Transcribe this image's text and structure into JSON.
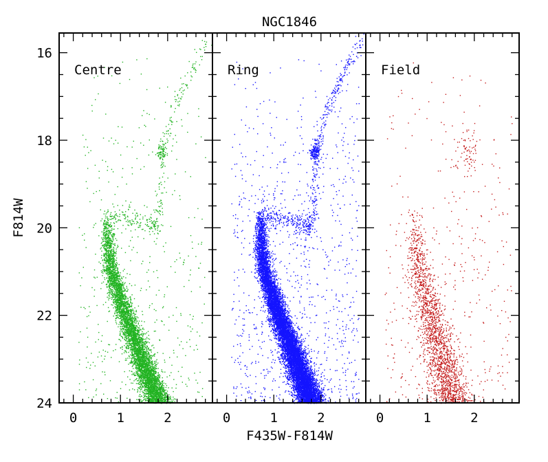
{
  "chart_data": {
    "type": "scatter",
    "title": "NGC1846",
    "xlabel": "F435W-F814W",
    "ylabel": "F814W",
    "xlim": [
      -0.3,
      2.95
    ],
    "ylim": [
      24,
      15.55
    ],
    "y_inverted": true,
    "grid": false,
    "x_ticks": [
      0,
      1,
      2
    ],
    "x_tick_labels": [
      "0",
      "1",
      "2"
    ],
    "y_ticks": [
      16,
      18,
      20,
      22,
      24
    ],
    "y_tick_labels": [
      "16",
      "18",
      "20",
      "22",
      "24"
    ],
    "panels": [
      {
        "label": "Centre",
        "color": "#22b322",
        "point_count_approx": 6500,
        "features": {
          "main_sequence_ridge": [
            [
              0.72,
              19.6
            ],
            [
              0.72,
              20.0
            ],
            [
              0.74,
              20.5
            ],
            [
              0.8,
              21.0
            ],
            [
              0.95,
              21.5
            ],
            [
              1.1,
              22.0
            ],
            [
              1.28,
              22.5
            ],
            [
              1.45,
              23.0
            ],
            [
              1.62,
              23.5
            ],
            [
              1.8,
              24.0
            ]
          ],
          "subgiant_branch": [
            [
              0.75,
              19.7
            ],
            [
              1.2,
              19.8
            ],
            [
              1.6,
              19.9
            ],
            [
              1.78,
              20.0
            ]
          ],
          "red_giant_branch": [
            [
              1.8,
              20.0
            ],
            [
              1.85,
              19.0
            ],
            [
              1.95,
              18.0
            ],
            [
              2.15,
              17.2
            ],
            [
              2.45,
              16.5
            ],
            [
              2.85,
              15.7
            ]
          ],
          "red_clump": {
            "color": 1.85,
            "mag": 18.25
          }
        }
      },
      {
        "label": "Ring",
        "color": "#1414ff",
        "point_count_approx": 13000,
        "features": {
          "main_sequence_ridge": [
            [
              0.72,
              19.6
            ],
            [
              0.72,
              20.0
            ],
            [
              0.74,
              20.5
            ],
            [
              0.8,
              21.0
            ],
            [
              0.95,
              21.5
            ],
            [
              1.1,
              22.0
            ],
            [
              1.28,
              22.5
            ],
            [
              1.45,
              23.0
            ],
            [
              1.62,
              23.5
            ],
            [
              1.8,
              24.0
            ]
          ],
          "subgiant_branch": [
            [
              0.75,
              19.7
            ],
            [
              1.2,
              19.8
            ],
            [
              1.6,
              19.9
            ],
            [
              1.78,
              20.0
            ]
          ],
          "red_giant_branch": [
            [
              1.8,
              20.0
            ],
            [
              1.85,
              19.0
            ],
            [
              1.95,
              18.0
            ],
            [
              2.15,
              17.2
            ],
            [
              2.45,
              16.5
            ],
            [
              2.85,
              15.7
            ]
          ],
          "red_clump": {
            "color": 1.85,
            "mag": 18.25
          }
        }
      },
      {
        "label": "Field",
        "color": "#c41a1a",
        "point_count_approx": 2300,
        "features": {
          "main_sequence_ridge": [
            [
              0.72,
              20.0
            ],
            [
              0.85,
              21.0
            ],
            [
              1.05,
              22.0
            ],
            [
              1.3,
              23.0
            ],
            [
              1.55,
              24.0
            ]
          ],
          "red_clump": {
            "color": 1.85,
            "mag": 18.3
          }
        }
      }
    ]
  }
}
